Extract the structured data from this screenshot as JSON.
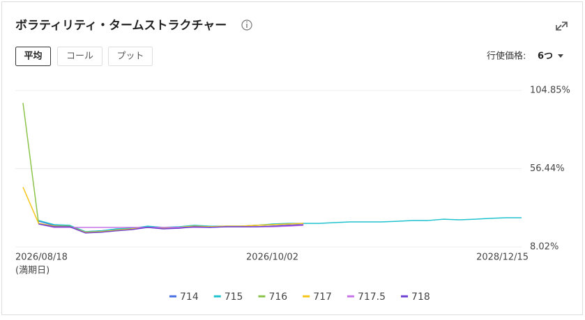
{
  "header": {
    "title": "ボラティリティ・タームストラクチャー"
  },
  "controls": {
    "buttons": [
      "平均",
      "コール",
      "プット"
    ],
    "strike_label": "行使価格:",
    "strike_value": "6つ"
  },
  "chart_data": {
    "type": "line",
    "categories": [
      "2026/08/18",
      null,
      null,
      null,
      null,
      null,
      null,
      null,
      null,
      null,
      null,
      null,
      null,
      null,
      null,
      null,
      "2026/10/02",
      null,
      null,
      null,
      null,
      null,
      null,
      null,
      null,
      null,
      null,
      null,
      null,
      null,
      null,
      null,
      "2028/12/15"
    ],
    "x_label_note": "(満期日)",
    "ylim": [
      8.02,
      104.85
    ],
    "yticks": [
      {
        "value": 8.02,
        "label": "8.02%"
      },
      {
        "value": 56.44,
        "label": "56.44%"
      },
      {
        "value": 104.85,
        "label": "104.85%"
      }
    ],
    "grid": true,
    "series": [
      {
        "name": "714",
        "color": "#4a6fe3",
        "values": [
          null,
          24.0,
          21.4,
          21.0,
          17.5,
          18.0,
          18.8,
          19.6,
          20.5,
          19.6,
          20.1,
          20.9,
          20.5,
          20.9,
          20.9,
          21.4,
          21.8,
          22.2,
          22.6,
          null,
          null,
          null,
          null,
          null,
          null,
          null,
          null,
          null,
          null,
          null,
          null,
          null,
          null
        ]
      },
      {
        "name": "715",
        "color": "#1fc2cf",
        "values": [
          null,
          24.4,
          21.8,
          21.4,
          17.5,
          18.0,
          19.2,
          19.6,
          20.9,
          20.1,
          20.5,
          21.4,
          20.9,
          20.9,
          20.9,
          21.4,
          22.2,
          22.6,
          22.6,
          22.6,
          23.1,
          23.5,
          23.5,
          23.5,
          23.9,
          24.4,
          24.4,
          25.2,
          24.8,
          25.2,
          25.7,
          26.1,
          26.1
        ]
      },
      {
        "name": "716",
        "color": "#8bc34a",
        "values": [
          97.1,
          22.6,
          21.0,
          20.9,
          17.1,
          17.5,
          18.4,
          19.2,
          20.1,
          19.6,
          20.1,
          20.9,
          20.5,
          20.9,
          20.9,
          21.4,
          21.8,
          22.2,
          22.6,
          null,
          null,
          null,
          null,
          null,
          null,
          null,
          null,
          null,
          null,
          null,
          null,
          null,
          null
        ]
      },
      {
        "name": "717",
        "color": "#f5c518",
        "values": [
          45.0,
          22.6,
          20.9,
          20.5,
          17.1,
          17.5,
          18.4,
          19.2,
          20.1,
          19.6,
          20.1,
          20.9,
          20.5,
          20.9,
          20.9,
          21.4,
          21.8,
          22.2,
          22.6,
          null,
          null,
          null,
          null,
          null,
          null,
          null,
          null,
          null,
          null,
          null,
          null,
          null,
          null
        ]
      },
      {
        "name": "717.5",
        "color": "#c774e8",
        "values": [
          null,
          22.2,
          20.1,
          20.1,
          20.1,
          20.1,
          20.1,
          20.1,
          20.1,
          20.1,
          20.1,
          20.1,
          20.1,
          20.5,
          20.5,
          20.5,
          20.5,
          20.9,
          21.4,
          null,
          null,
          null,
          null,
          null,
          null,
          null,
          null,
          null,
          null,
          null,
          null,
          null,
          null
        ]
      },
      {
        "name": "718",
        "color": "#6a3fd1",
        "values": [
          null,
          22.2,
          20.5,
          20.5,
          16.7,
          17.1,
          18.0,
          18.8,
          20.1,
          19.2,
          19.6,
          20.5,
          20.1,
          20.5,
          20.5,
          20.5,
          20.9,
          21.4,
          21.8,
          null,
          null,
          null,
          null,
          null,
          null,
          null,
          null,
          null,
          null,
          null,
          null,
          null,
          null
        ]
      }
    ]
  }
}
